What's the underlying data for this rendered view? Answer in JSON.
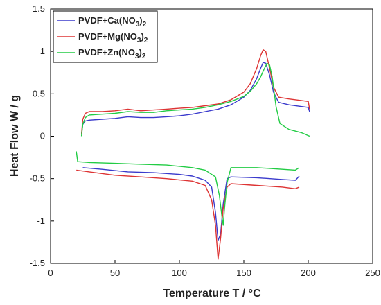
{
  "chart_data": {
    "type": "line",
    "title": "",
    "xlabel": "Temperature T / °C",
    "ylabel": "Heat Flow W / g",
    "xlim": [
      0,
      250
    ],
    "ylim": [
      -1.5,
      1.5
    ],
    "xticks": [
      0,
      50,
      100,
      150,
      200,
      250
    ],
    "yticks": [
      -1.5,
      -1,
      -0.5,
      0,
      0.5,
      1,
      1.5
    ],
    "ytick_labels": [
      "-1.5",
      "-1",
      "-0.5",
      "0",
      "0.5",
      "1",
      "1.5"
    ],
    "grid": false,
    "legend_position": "top-left",
    "series": [
      {
        "name": "PVDF+Ca(NO3)2",
        "name_base": "PVDF+Ca(NO",
        "name_sub1": "3",
        "name_mid": ")",
        "name_sub2": "2",
        "color": "#3a3acc",
        "heating": [
          [
            24,
            0.02
          ],
          [
            25,
            0.14
          ],
          [
            27,
            0.18
          ],
          [
            30,
            0.19
          ],
          [
            40,
            0.2
          ],
          [
            50,
            0.21
          ],
          [
            60,
            0.23
          ],
          [
            70,
            0.22
          ],
          [
            80,
            0.22
          ],
          [
            90,
            0.23
          ],
          [
            100,
            0.24
          ],
          [
            110,
            0.26
          ],
          [
            120,
            0.29
          ],
          [
            130,
            0.32
          ],
          [
            140,
            0.37
          ],
          [
            150,
            0.46
          ],
          [
            155,
            0.54
          ],
          [
            160,
            0.68
          ],
          [
            163,
            0.8
          ],
          [
            165,
            0.87
          ],
          [
            167,
            0.86
          ],
          [
            170,
            0.72
          ],
          [
            173,
            0.52
          ],
          [
            177,
            0.4
          ],
          [
            185,
            0.37
          ],
          [
            195,
            0.35
          ],
          [
            200,
            0.34
          ],
          [
            201,
            0.29
          ]
        ],
        "cooling": [
          [
            25,
            -0.37
          ],
          [
            40,
            -0.39
          ],
          [
            60,
            -0.42
          ],
          [
            80,
            -0.43
          ],
          [
            100,
            -0.45
          ],
          [
            110,
            -0.47
          ],
          [
            120,
            -0.52
          ],
          [
            125,
            -0.6
          ],
          [
            128,
            -0.9
          ],
          [
            130,
            -1.23
          ],
          [
            132,
            -1.15
          ],
          [
            134,
            -0.8
          ],
          [
            137,
            -0.5
          ],
          [
            140,
            -0.48
          ],
          [
            160,
            -0.49
          ],
          [
            180,
            -0.51
          ],
          [
            190,
            -0.52
          ],
          [
            193,
            -0.47
          ]
        ]
      },
      {
        "name": "PVDF+Mg(NO3)2",
        "name_base": "PVDF+Mg(NO",
        "name_sub1": "3",
        "name_mid": ")",
        "name_sub2": "2",
        "color": "#dd3333",
        "heating": [
          [
            24,
            0.02
          ],
          [
            25,
            0.2
          ],
          [
            27,
            0.27
          ],
          [
            30,
            0.29
          ],
          [
            40,
            0.29
          ],
          [
            50,
            0.3
          ],
          [
            60,
            0.32
          ],
          [
            70,
            0.3
          ],
          [
            80,
            0.31
          ],
          [
            90,
            0.32
          ],
          [
            100,
            0.33
          ],
          [
            110,
            0.34
          ],
          [
            120,
            0.36
          ],
          [
            130,
            0.38
          ],
          [
            140,
            0.43
          ],
          [
            150,
            0.52
          ],
          [
            155,
            0.62
          ],
          [
            160,
            0.8
          ],
          [
            163,
            0.95
          ],
          [
            165,
            1.02
          ],
          [
            167,
            1.0
          ],
          [
            170,
            0.8
          ],
          [
            173,
            0.58
          ],
          [
            177,
            0.46
          ],
          [
            185,
            0.44
          ],
          [
            195,
            0.42
          ],
          [
            200,
            0.41
          ],
          [
            201,
            0.32
          ]
        ],
        "cooling": [
          [
            20,
            -0.4
          ],
          [
            30,
            -0.42
          ],
          [
            50,
            -0.46
          ],
          [
            70,
            -0.48
          ],
          [
            90,
            -0.5
          ],
          [
            110,
            -0.53
          ],
          [
            120,
            -0.58
          ],
          [
            125,
            -0.75
          ],
          [
            128,
            -1.05
          ],
          [
            130,
            -1.45
          ],
          [
            132,
            -1.2
          ],
          [
            134,
            -0.85
          ],
          [
            137,
            -0.6
          ],
          [
            140,
            -0.56
          ],
          [
            160,
            -0.58
          ],
          [
            180,
            -0.6
          ],
          [
            190,
            -0.62
          ],
          [
            193,
            -0.6
          ]
        ]
      },
      {
        "name": "PVDF+Zn(NO3)2",
        "name_base": "PVDF+Zn(NO",
        "name_sub1": "3",
        "name_mid": ")",
        "name_sub2": "2",
        "color": "#22cc44",
        "heating": [
          [
            24,
            0.0
          ],
          [
            25,
            0.14
          ],
          [
            27,
            0.22
          ],
          [
            30,
            0.25
          ],
          [
            40,
            0.26
          ],
          [
            50,
            0.27
          ],
          [
            60,
            0.29
          ],
          [
            70,
            0.28
          ],
          [
            80,
            0.28
          ],
          [
            90,
            0.3
          ],
          [
            100,
            0.31
          ],
          [
            110,
            0.32
          ],
          [
            120,
            0.34
          ],
          [
            130,
            0.37
          ],
          [
            140,
            0.41
          ],
          [
            150,
            0.47
          ],
          [
            155,
            0.53
          ],
          [
            160,
            0.62
          ],
          [
            163,
            0.7
          ],
          [
            166,
            0.8
          ],
          [
            168,
            0.86
          ],
          [
            170,
            0.84
          ],
          [
            172,
            0.7
          ],
          [
            175,
            0.35
          ],
          [
            178,
            0.15
          ],
          [
            185,
            0.08
          ],
          [
            195,
            0.04
          ],
          [
            201,
            0.0
          ]
        ],
        "cooling": [
          [
            20,
            -0.18
          ],
          [
            21,
            -0.3
          ],
          [
            30,
            -0.31
          ],
          [
            50,
            -0.32
          ],
          [
            70,
            -0.33
          ],
          [
            90,
            -0.34
          ],
          [
            110,
            -0.37
          ],
          [
            120,
            -0.4
          ],
          [
            128,
            -0.48
          ],
          [
            131,
            -0.7
          ],
          [
            133,
            -0.95
          ],
          [
            134,
            -1.05
          ],
          [
            135,
            -0.85
          ],
          [
            137,
            -0.55
          ],
          [
            140,
            -0.37
          ],
          [
            160,
            -0.37
          ],
          [
            180,
            -0.39
          ],
          [
            190,
            -0.4
          ],
          [
            193,
            -0.37
          ]
        ]
      }
    ]
  }
}
